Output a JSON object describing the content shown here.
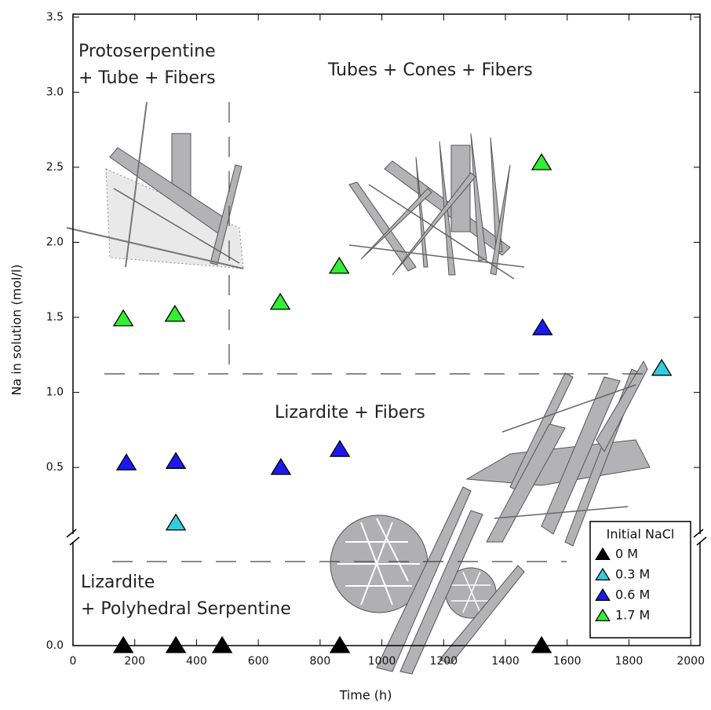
{
  "chart_data": {
    "type": "scatter",
    "x_label": "Time (h)",
    "y_label": "Na in solution (mol/l)",
    "xlim": [
      0,
      2030
    ],
    "xticks": [
      0,
      200,
      400,
      600,
      800,
      1000,
      1200,
      1400,
      1600,
      1800,
      2000
    ],
    "panels": [
      {
        "ylim": [
          0,
          0.25
        ],
        "yticks": [
          {
            "value": 0,
            "label": "0.0"
          }
        ]
      },
      {
        "ylim": [
          0.03,
          3.52
        ],
        "yticks": [
          0.5,
          {
            "value": 1,
            "label": "1.0"
          },
          1.5,
          {
            "value": 2,
            "label": "2.0"
          },
          2.5,
          {
            "value": 3,
            "label": "3.0"
          },
          3.5
        ]
      }
    ],
    "legend": {
      "title": "Initial NaCl",
      "position": "lower right"
    },
    "series": [
      {
        "name": "0 M",
        "color": "#000000",
        "panel": 0,
        "x": [
          163,
          333,
          483,
          864,
          1517
        ],
        "values": [
          0,
          0,
          0,
          0,
          0
        ]
      },
      {
        "name": "0.3 M",
        "color": "#33ccdd",
        "panel": 1,
        "x": [
          333,
          1906
        ],
        "values": [
          0.13,
          1.16
        ]
      },
      {
        "name": "0.6 M",
        "color": "#1a1aee",
        "panel": 1,
        "x": [
          173,
          333,
          673,
          864,
          1520
        ],
        "values": [
          0.53,
          0.54,
          0.5,
          0.62,
          1.43
        ]
      },
      {
        "name": "1.7 M",
        "color": "#33ee33",
        "panel": 1,
        "x": [
          163,
          330,
          671,
          862,
          1517
        ],
        "values": [
          1.49,
          1.52,
          1.6,
          1.84,
          2.53
        ]
      }
    ]
  },
  "annotations": [
    "Protoserpentine",
    "+ Tube + Fibers",
    "Tubes + Cones + Fibers",
    "Lizardite + Fibers",
    "Lizardite",
    "+ Polyhedral Serpentine"
  ]
}
